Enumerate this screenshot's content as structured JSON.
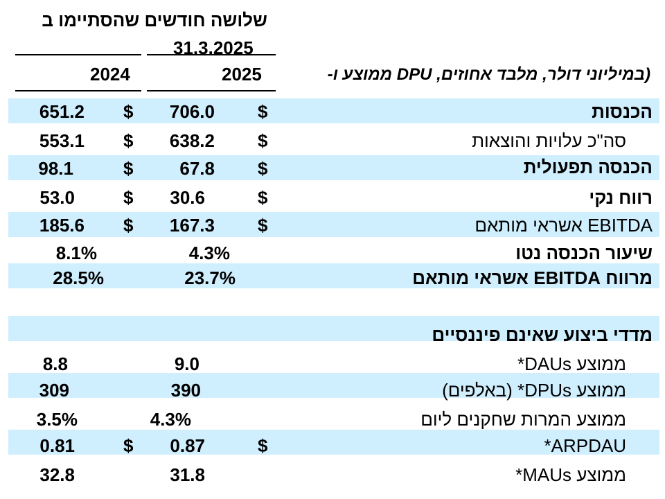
{
  "header": {
    "period_title": "שלושה חודשים שהסתיימו ב",
    "date": "31.3.2025",
    "units_note": "(במיליוני דולר, מלבד אחוזים, DPU ממוצע ו-",
    "col_2025": "2025",
    "col_2024": "2024"
  },
  "rows": [
    {
      "label": "הכנסות",
      "cur_2025": "$",
      "val_2025": "706.0",
      "cur_2024": "$",
      "val_2024": "651.2"
    },
    {
      "label": "סה\"כ עלויות והוצאות",
      "cur_2025": "$",
      "val_2025": "638.2",
      "cur_2024": "$",
      "val_2024": "553.1"
    },
    {
      "label": "הכנסה תפעולית",
      "cur_2025": "$",
      "val_2025": "67.8",
      "cur_2024": "$",
      "val_2024": "98.1"
    },
    {
      "label": "רווח נקי",
      "cur_2025": "$",
      "val_2025": "30.6",
      "cur_2024": "$",
      "val_2024": "53.0"
    },
    {
      "label": "EBITDA אשראי מותאם",
      "cur_2025": "$",
      "val_2025": "167.3",
      "cur_2024": "$",
      "val_2024": "185.6"
    },
    {
      "label": "שיעור הכנסה נטו",
      "val_2025": "4.3%",
      "val_2024": "8.1%"
    },
    {
      "label": "מרווח EBITDA אשראי מותאם",
      "val_2025": "23.7%",
      "val_2024": "28.5%"
    },
    {
      "label": ""
    },
    {
      "label": "מדדי ביצוע שאינם פיננסיים"
    },
    {
      "label": "ממוצע DAUs*",
      "val_2025": "9.0",
      "val_2024": "8.8"
    },
    {
      "label": "ממוצע DPUs* (באלפים)",
      "val_2025": "390",
      "val_2024": "309"
    },
    {
      "label": "ממוצע המרות שחקנים ליום",
      "val_2025": "4.3%",
      "val_2024": "3.5%"
    },
    {
      "label": "ARPDAU*",
      "cur_2025": "$",
      "val_2025": "0.87",
      "cur_2024": "$",
      "val_2024": "0.81"
    },
    {
      "label": "ממוצע MAUs*",
      "val_2025": "31.8",
      "val_2024": "32.8"
    }
  ]
}
